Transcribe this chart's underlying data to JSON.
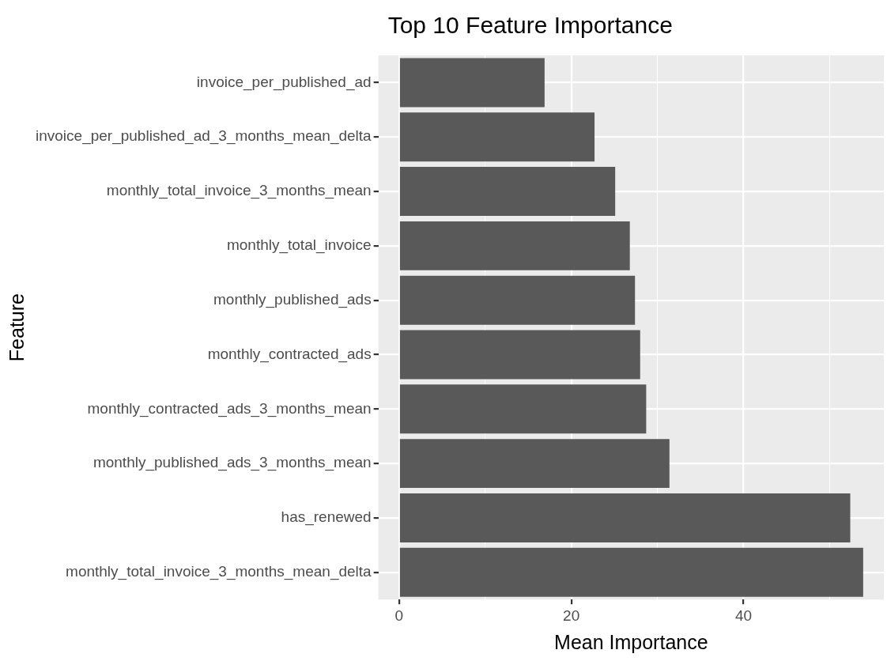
{
  "chart_data": {
    "type": "bar",
    "orientation": "horizontal",
    "title": "Top 10 Feature Importance",
    "xlabel": "Mean Importance",
    "ylabel": "Feature",
    "categories": [
      "invoice_per_published_ad",
      "invoice_per_published_ad_3_months_mean_delta",
      "monthly_total_invoice_3_months_mean",
      "monthly_total_invoice",
      "monthly_published_ads",
      "monthly_contracted_ads",
      "monthly_contracted_ads_3_months_mean",
      "monthly_published_ads_3_months_mean",
      "has_renewed",
      "monthly_total_invoice_3_months_mean_delta"
    ],
    "values": [
      16.9,
      22.7,
      25.1,
      26.8,
      27.4,
      28.0,
      28.7,
      31.4,
      52.4,
      53.9
    ],
    "color": "#595959",
    "xlim": [
      -2.4,
      56.3
    ],
    "xticks": [
      0,
      {
        "value": 10,
        "label": null
      },
      20,
      {
        "value": 30,
        "label": null
      },
      40,
      {
        "value": 50,
        "label": null
      }
    ],
    "grid": true,
    "legend": false
  }
}
